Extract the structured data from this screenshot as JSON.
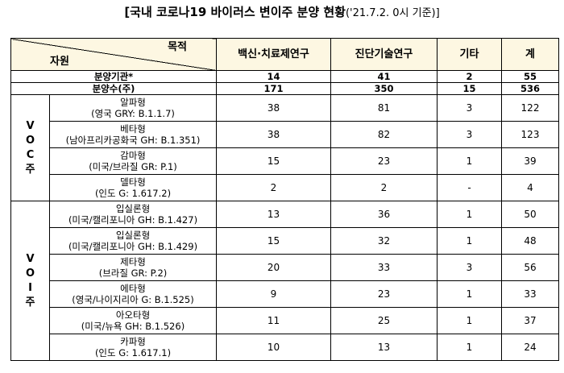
{
  "title": {
    "main": "[국내 코로나19 바이러스 변이주 분양 현황",
    "sub": "('21.7.2. 0시 기준)]"
  },
  "header": {
    "purpose": "목적",
    "resource": "자원",
    "columns": [
      "백신·치료제연구",
      "진단기술연구",
      "기타",
      "계"
    ]
  },
  "summary": [
    {
      "label": "분양기관*",
      "values": [
        "14",
        "41",
        "2",
        "55"
      ]
    },
    {
      "label": "분양수(주)",
      "values": [
        "171",
        "350",
        "15",
        "536"
      ]
    }
  ],
  "groups": [
    {
      "label": [
        "V",
        "O",
        "C",
        "주"
      ],
      "rows": [
        {
          "name": "알파형",
          "detail": "(영국 GRY: B.1.1.7)",
          "values": [
            "38",
            "81",
            "3",
            "122"
          ]
        },
        {
          "name": "베타형",
          "detail": "(남아프리카공화국 GH: B.1.351)",
          "values": [
            "38",
            "82",
            "3",
            "123"
          ]
        },
        {
          "name": "감마형",
          "detail": "(미국/브라질 GR: P.1)",
          "values": [
            "15",
            "23",
            "1",
            "39"
          ]
        },
        {
          "name": "델타형",
          "detail": "(인도 G: 1.617.2)",
          "values": [
            "2",
            "2",
            "-",
            "4"
          ]
        }
      ]
    },
    {
      "label": [
        "V",
        "O",
        "I",
        "주"
      ],
      "rows": [
        {
          "name": "입실론형",
          "detail": "(미국/캘리포니아 GH: B.1.427)",
          "values": [
            "13",
            "36",
            "1",
            "50"
          ]
        },
        {
          "name": "입실론형",
          "detail": "(미국/캘리포니아 GH: B.1.429)",
          "values": [
            "15",
            "32",
            "1",
            "48"
          ]
        },
        {
          "name": "제타형",
          "detail": "(브라질 GR: P.2)",
          "values": [
            "20",
            "33",
            "3",
            "56"
          ]
        },
        {
          "name": "에타형",
          "detail": "(영국/나이지리아 G: B.1.525)",
          "values": [
            "9",
            "23",
            "1",
            "33"
          ]
        },
        {
          "name": "아오타형",
          "detail": "(미국/뉴욕 GH: B.1.526)",
          "values": [
            "11",
            "25",
            "1",
            "37"
          ]
        },
        {
          "name": "카파형",
          "detail": "(인도 G: 1.617.1)",
          "values": [
            "10",
            "13",
            "1",
            "24"
          ]
        }
      ]
    }
  ]
}
